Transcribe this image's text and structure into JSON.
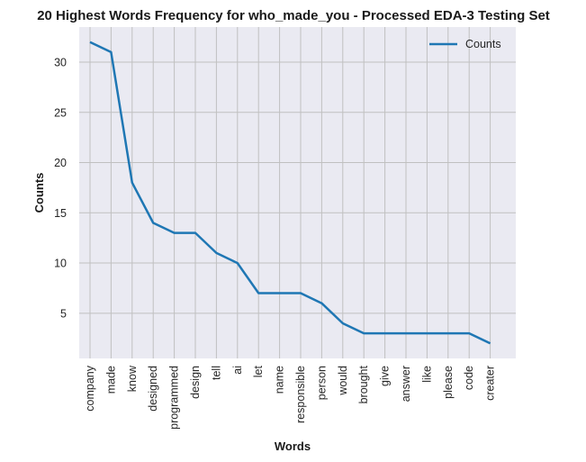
{
  "chart_data": {
    "type": "line",
    "title": "20 Highest Words Frequency for who_made_you - Processed EDA-3 Testing Set",
    "xlabel": "Words",
    "ylabel": "Counts",
    "categories": [
      "company",
      "made",
      "know",
      "designed",
      "programmed",
      "design",
      "tell",
      "ai",
      "let",
      "name",
      "responsible",
      "person",
      "would",
      "brought",
      "give",
      "answer",
      "like",
      "please",
      "code",
      "creater"
    ],
    "series": [
      {
        "name": "Counts",
        "values": [
          32,
          31,
          18,
          14,
          13,
          13,
          11,
          10,
          7,
          7,
          7,
          6,
          4,
          3,
          3,
          3,
          3,
          3,
          3,
          2
        ]
      }
    ],
    "yticks": [
      5,
      10,
      15,
      20,
      25,
      30
    ],
    "ylim": [
      0.5,
      33.5
    ],
    "grid": true,
    "legend_position": "top-right",
    "colors": {
      "line": "#1f77b4",
      "plot_background": "#eaeaf2",
      "grid": "#c0c0c0"
    }
  }
}
